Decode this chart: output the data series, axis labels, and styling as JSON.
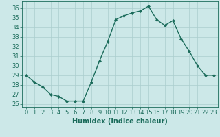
{
  "x": [
    0,
    1,
    2,
    3,
    4,
    5,
    6,
    7,
    8,
    9,
    10,
    11,
    12,
    13,
    14,
    15,
    16,
    17,
    18,
    19,
    20,
    21,
    22,
    23
  ],
  "y": [
    29,
    28.3,
    27.8,
    27.0,
    26.8,
    26.3,
    26.3,
    26.3,
    28.3,
    30.5,
    32.5,
    34.8,
    35.2,
    35.5,
    35.7,
    36.2,
    34.8,
    34.2,
    34.7,
    32.8,
    31.5,
    30.0,
    29.0,
    29.0
  ],
  "line_color": "#1a6b5a",
  "marker": "D",
  "marker_size": 2.0,
  "bg_color": "#cce8e8",
  "grid_color": "#aacece",
  "xlabel": "Humidex (Indice chaleur)",
  "ylim": [
    25.7,
    36.7
  ],
  "xlim": [
    -0.5,
    23.5
  ],
  "yticks": [
    26,
    27,
    28,
    29,
    30,
    31,
    32,
    33,
    34,
    35,
    36
  ],
  "xticks": [
    0,
    1,
    2,
    3,
    4,
    5,
    6,
    7,
    8,
    9,
    10,
    11,
    12,
    13,
    14,
    15,
    16,
    17,
    18,
    19,
    20,
    21,
    22,
    23
  ],
  "xlabel_fontsize": 7,
  "tick_fontsize": 6,
  "line_width": 1.0
}
